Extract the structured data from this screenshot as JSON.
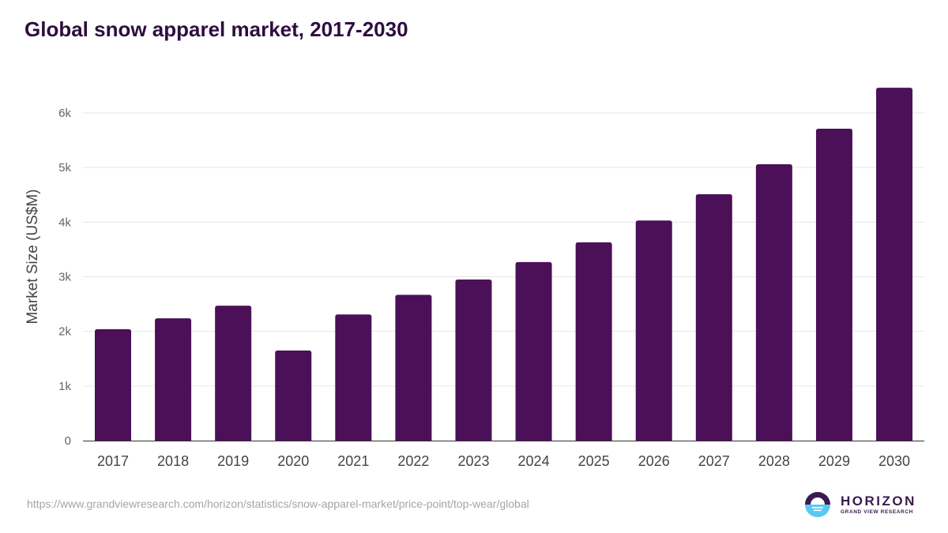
{
  "chart_data": {
    "type": "bar",
    "title": "Global snow apparel market, 2017-2030",
    "xlabel": "",
    "ylabel": "Market Size (US$M)",
    "ylim": [
      0,
      6000
    ],
    "yticks": [
      0,
      1000,
      2000,
      3000,
      4000,
      5000,
      6000
    ],
    "ytick_labels": [
      "0",
      "1k",
      "2k",
      "3k",
      "4k",
      "5k",
      "6k"
    ],
    "grid": true,
    "categories": [
      "2017",
      "2018",
      "2019",
      "2020",
      "2021",
      "2022",
      "2023",
      "2024",
      "2025",
      "2026",
      "2027",
      "2028",
      "2029",
      "2030"
    ],
    "values": [
      2040,
      2240,
      2470,
      1650,
      2310,
      2670,
      2950,
      3270,
      3630,
      4030,
      4510,
      5060,
      5710,
      6460
    ],
    "bar_color": "#4b1058"
  },
  "footer": {
    "source_url": "https://www.grandviewresearch.com/horizon/statistics/snow-apparel-market/price-point/top-wear/global",
    "logo_main": "HORIZON",
    "logo_sub": "GRAND VIEW RESEARCH"
  }
}
